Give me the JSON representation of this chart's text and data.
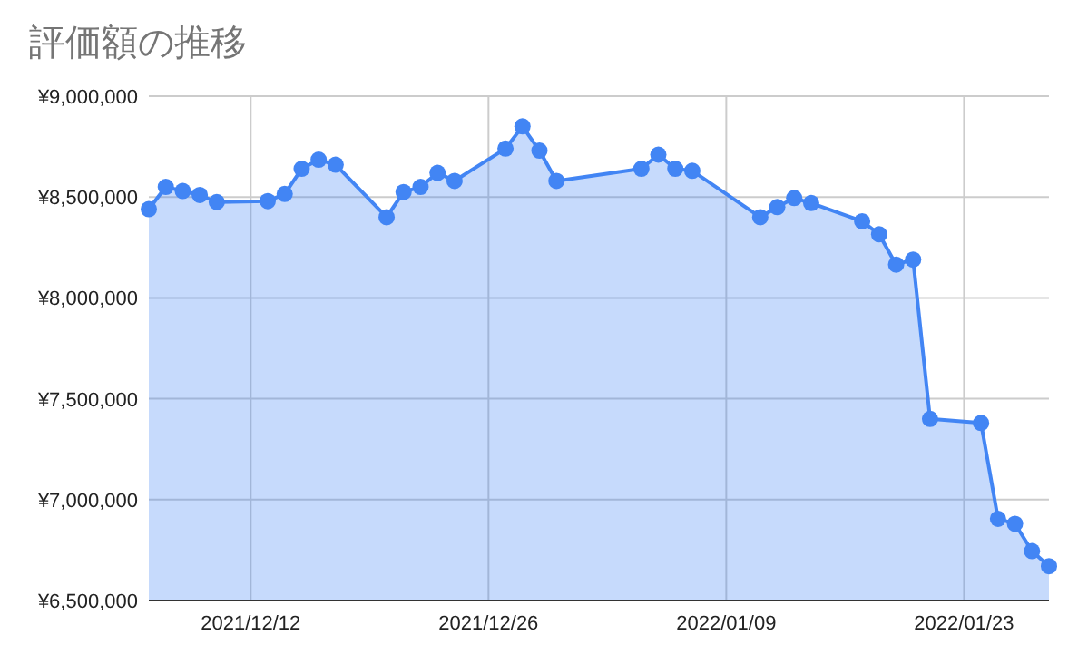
{
  "chart_data": {
    "type": "area",
    "title": "評価額の推移",
    "x": [
      "2021-12-06",
      "2021-12-07",
      "2021-12-08",
      "2021-12-09",
      "2021-12-10",
      "2021-12-13",
      "2021-12-14",
      "2021-12-15",
      "2021-12-16",
      "2021-12-17",
      "2021-12-20",
      "2021-12-21",
      "2021-12-22",
      "2021-12-23",
      "2021-12-24",
      "2021-12-27",
      "2021-12-28",
      "2021-12-29",
      "2021-12-30",
      "2022-01-04",
      "2022-01-05",
      "2022-01-06",
      "2022-01-07",
      "2022-01-11",
      "2022-01-12",
      "2022-01-13",
      "2022-01-14",
      "2022-01-17",
      "2022-01-18",
      "2022-01-19",
      "2022-01-20",
      "2022-01-21",
      "2022-01-24",
      "2022-01-25",
      "2022-01-26",
      "2022-01-27",
      "2022-01-28"
    ],
    "series": [
      {
        "color": "#4285f4",
        "values": [
          8440000,
          8550000,
          8530000,
          8510000,
          8475000,
          8480000,
          8515000,
          8640000,
          8685000,
          8660000,
          8400000,
          8525000,
          8550000,
          8620000,
          8580000,
          8740000,
          8850000,
          8730000,
          8580000,
          8640000,
          8710000,
          8640000,
          8630000,
          8400000,
          8450000,
          8495000,
          8470000,
          8380000,
          8315000,
          8165000,
          8190000,
          7400000,
          7380000,
          6905000,
          6880000,
          6745000,
          6670000
        ]
      }
    ],
    "xlim": [
      "2021-12-06",
      "2022-01-28"
    ],
    "xticks": [
      {
        "value": "2021-12-12",
        "label": "2021/12/12"
      },
      {
        "value": "2021-12-26",
        "label": "2021/12/26"
      },
      {
        "value": "2022-01-09",
        "label": "2022/01/09"
      },
      {
        "value": "2022-01-23",
        "label": "2022/01/23"
      }
    ],
    "ylim": [
      6500000,
      9000000
    ],
    "yticks": [
      {
        "value": 6500000,
        "label": "¥6,500,000"
      },
      {
        "value": 7000000,
        "label": "¥7,000,000"
      },
      {
        "value": 7500000,
        "label": "¥7,500,000"
      },
      {
        "value": 8000000,
        "label": "¥8,000,000"
      },
      {
        "value": 8500000,
        "label": "¥8,500,000"
      },
      {
        "value": 9000000,
        "label": "¥9,000,000"
      }
    ],
    "grid": true,
    "marker": "circle",
    "line_style": "solid"
  }
}
